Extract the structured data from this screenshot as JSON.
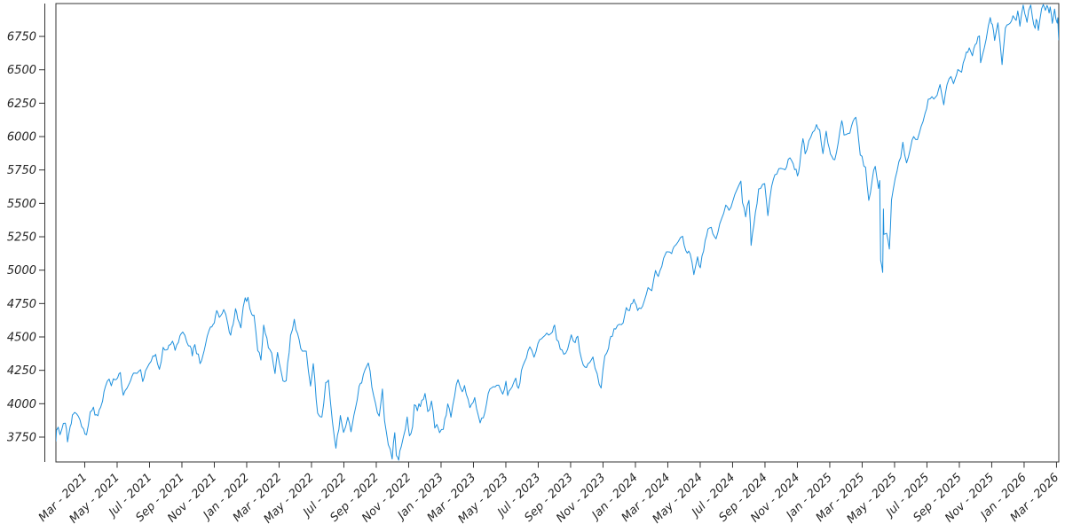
{
  "figure": {
    "background": "#ffffff",
    "spine_color": "#333333",
    "tick_label_color": "#262626"
  },
  "chart_data": {
    "type": "line",
    "title": "",
    "legend": null,
    "grid": false,
    "line_color": "#1e90dd",
    "x_axis": {
      "unit": "months_since_2021_01",
      "range_months": [
        0.22,
        62.14
      ],
      "tick_months": [
        2,
        4,
        6,
        8,
        10,
        12,
        14,
        16,
        18,
        20,
        22,
        24,
        26,
        28,
        30,
        32,
        34,
        36,
        38,
        40,
        42,
        44,
        46,
        48,
        50,
        52,
        54,
        56,
        58,
        60,
        62
      ],
      "tick_labels": [
        "Mar - 2021",
        "May - 2021",
        "Jul - 2021",
        "Sep - 2021",
        "Nov - 2021",
        "Jan - 2022",
        "Mar - 2022",
        "May - 2022",
        "Jul - 2022",
        "Sep - 2022",
        "Nov - 2022",
        "Jan - 2023",
        "Mar - 2023",
        "May - 2023",
        "Jul - 2023",
        "Sep - 2023",
        "Nov - 2023",
        "Jan - 2024",
        "Mar - 2024",
        "May - 2024",
        "Jul - 2024",
        "Sep - 2024",
        "Nov - 2024",
        "Jan - 2025",
        "Mar - 2025",
        "May - 2025",
        "Jul - 2025",
        "Sep - 2025",
        "Nov - 2025",
        "Jan - 2026",
        "Mar - 2026"
      ],
      "label_rotation_deg": 45
    },
    "y_axis": {
      "range": [
        3564,
        6996
      ],
      "tick_values": [
        3750,
        4000,
        4250,
        4500,
        4750,
        5000,
        5250,
        5500,
        5750,
        6000,
        6250,
        6500,
        6750
      ]
    },
    "points": [
      [
        0.22,
        3718
      ],
      [
        0.26,
        3801
      ],
      [
        0.36,
        3824
      ],
      [
        0.47,
        3768
      ],
      [
        0.68,
        3853
      ],
      [
        0.8,
        3855
      ],
      [
        0.94,
        3714
      ],
      [
        1.1,
        3830
      ],
      [
        1.24,
        3916
      ],
      [
        1.38,
        3935
      ],
      [
        1.6,
        3907
      ],
      [
        1.81,
        3829
      ],
      [
        1.93,
        3811
      ],
      [
        2.11,
        3768
      ],
      [
        2.34,
        3939
      ],
      [
        2.54,
        3974
      ],
      [
        2.63,
        3915
      ],
      [
        2.81,
        3910
      ],
      [
        2.98,
        3973
      ],
      [
        3.1,
        4020
      ],
      [
        3.28,
        4129
      ],
      [
        3.51,
        4185
      ],
      [
        3.64,
        4134
      ],
      [
        3.77,
        4187
      ],
      [
        3.94,
        4181
      ],
      [
        4.2,
        4233
      ],
      [
        4.38,
        4063
      ],
      [
        4.61,
        4116
      ],
      [
        4.77,
        4156
      ],
      [
        4.91,
        4204
      ],
      [
        5.11,
        4230
      ],
      [
        5.23,
        4227
      ],
      [
        5.45,
        4255
      ],
      [
        5.58,
        4166
      ],
      [
        5.75,
        4246
      ],
      [
        5.98,
        4298
      ],
      [
        6.21,
        4358
      ],
      [
        6.38,
        4369
      ],
      [
        6.61,
        4258
      ],
      [
        6.84,
        4422
      ],
      [
        7.05,
        4403
      ],
      [
        7.19,
        4437
      ],
      [
        7.42,
        4468
      ],
      [
        7.58,
        4400
      ],
      [
        7.88,
        4509
      ],
      [
        8.05,
        4537
      ],
      [
        8.31,
        4459
      ],
      [
        8.5,
        4433
      ],
      [
        8.64,
        4358
      ],
      [
        8.8,
        4443
      ],
      [
        9.12,
        4300
      ],
      [
        9.3,
        4363
      ],
      [
        9.45,
        4438
      ],
      [
        9.68,
        4550
      ],
      [
        9.85,
        4575
      ],
      [
        10.0,
        4605
      ],
      [
        10.15,
        4698
      ],
      [
        10.31,
        4647
      ],
      [
        10.58,
        4705
      ],
      [
        10.84,
        4595
      ],
      [
        11.01,
        4513
      ],
      [
        11.16,
        4591
      ],
      [
        11.31,
        4712
      ],
      [
        11.45,
        4634
      ],
      [
        11.64,
        4568
      ],
      [
        11.79,
        4726
      ],
      [
        11.91,
        4793
      ],
      [
        11.99,
        4766
      ],
      [
        12.08,
        4797
      ],
      [
        12.31,
        4670
      ],
      [
        12.45,
        4663
      ],
      [
        12.68,
        4398
      ],
      [
        12.88,
        4327
      ],
      [
        13.05,
        4589
      ],
      [
        13.34,
        4419
      ],
      [
        13.54,
        4380
      ],
      [
        13.75,
        4226
      ],
      [
        13.9,
        4384
      ],
      [
        14.01,
        4306
      ],
      [
        14.24,
        4171
      ],
      [
        14.44,
        4173
      ],
      [
        14.71,
        4512
      ],
      [
        14.94,
        4632
      ],
      [
        15.14,
        4525
      ],
      [
        15.44,
        4393
      ],
      [
        15.68,
        4394
      ],
      [
        15.94,
        4132
      ],
      [
        16.11,
        4300
      ],
      [
        16.38,
        3930
      ],
      [
        16.64,
        3901
      ],
      [
        16.88,
        4158
      ],
      [
        17.05,
        4177
      ],
      [
        17.41,
        3750
      ],
      [
        17.51,
        3667
      ],
      [
        17.78,
        3912
      ],
      [
        17.98,
        3785
      ],
      [
        18.24,
        3899
      ],
      [
        18.44,
        3790
      ],
      [
        18.71,
        3962
      ],
      [
        18.94,
        4130
      ],
      [
        19.1,
        4155
      ],
      [
        19.51,
        4305
      ],
      [
        19.84,
        4058
      ],
      [
        20.18,
        3908
      ],
      [
        20.38,
        4110
      ],
      [
        20.51,
        3873
      ],
      [
        20.74,
        3693
      ],
      [
        20.98,
        3586
      ],
      [
        21.14,
        3783
      ],
      [
        21.24,
        3612
      ],
      [
        21.38,
        3577
      ],
      [
        21.54,
        3678
      ],
      [
        21.68,
        3753
      ],
      [
        21.91,
        3901
      ],
      [
        22.05,
        3760
      ],
      [
        22.24,
        3828
      ],
      [
        22.35,
        3993
      ],
      [
        22.54,
        3947
      ],
      [
        22.81,
        4026
      ],
      [
        23.01,
        4077
      ],
      [
        23.18,
        3941
      ],
      [
        23.41,
        4020
      ],
      [
        23.61,
        3818
      ],
      [
        23.74,
        3845
      ],
      [
        23.91,
        3783
      ],
      [
        24.14,
        3808
      ],
      [
        24.41,
        3999
      ],
      [
        24.61,
        3899
      ],
      [
        24.84,
        4060
      ],
      [
        25.05,
        4180
      ],
      [
        25.31,
        4090
      ],
      [
        25.45,
        4136
      ],
      [
        25.78,
        3970
      ],
      [
        26.08,
        4046
      ],
      [
        26.41,
        3856
      ],
      [
        26.71,
        3937
      ],
      [
        27.01,
        4109
      ],
      [
        27.44,
        4138
      ],
      [
        27.81,
        4072
      ],
      [
        28.01,
        4168
      ],
      [
        28.11,
        4061
      ],
      [
        28.38,
        4124
      ],
      [
        28.61,
        4192
      ],
      [
        28.78,
        4115
      ],
      [
        29.05,
        4282
      ],
      [
        29.48,
        4426
      ],
      [
        29.74,
        4348
      ],
      [
        29.98,
        4450
      ],
      [
        30.41,
        4510
      ],
      [
        30.88,
        4537
      ],
      [
        31.01,
        4589
      ],
      [
        31.14,
        4478
      ],
      [
        31.58,
        4370
      ],
      [
        31.81,
        4406
      ],
      [
        32.04,
        4516
      ],
      [
        32.28,
        4457
      ],
      [
        32.44,
        4505
      ],
      [
        32.68,
        4330
      ],
      [
        32.88,
        4275
      ],
      [
        33.18,
        4309
      ],
      [
        33.38,
        4350
      ],
      [
        33.64,
        4224
      ],
      [
        33.88,
        4117
      ],
      [
        34.11,
        4358
      ],
      [
        34.34,
        4415
      ],
      [
        34.48,
        4503
      ],
      [
        34.78,
        4559
      ],
      [
        35.01,
        4595
      ],
      [
        35.24,
        4604
      ],
      [
        35.44,
        4720
      ],
      [
        35.64,
        4698
      ],
      [
        35.91,
        4783
      ],
      [
        36.04,
        4743
      ],
      [
        36.14,
        4697
      ],
      [
        36.54,
        4766
      ],
      [
        36.78,
        4869
      ],
      [
        37.01,
        4846
      ],
      [
        37.24,
        4998
      ],
      [
        37.41,
        4953
      ],
      [
        37.74,
        5089
      ],
      [
        38.01,
        5137
      ],
      [
        38.24,
        5124
      ],
      [
        38.38,
        5175
      ],
      [
        38.91,
        5254
      ],
      [
        39.11,
        5147
      ],
      [
        39.38,
        5123
      ],
      [
        39.61,
        4967
      ],
      [
        39.84,
        5100
      ],
      [
        40.01,
        5018
      ],
      [
        40.31,
        5223
      ],
      [
        40.48,
        5308
      ],
      [
        40.68,
        5321
      ],
      [
        40.98,
        5235
      ],
      [
        41.21,
        5347
      ],
      [
        41.58,
        5487
      ],
      [
        41.78,
        5448
      ],
      [
        42.14,
        5567
      ],
      [
        42.51,
        5667
      ],
      [
        42.61,
        5505
      ],
      [
        42.81,
        5399
      ],
      [
        43.01,
        5522
      ],
      [
        43.1,
        5346
      ],
      [
        43.14,
        5186
      ],
      [
        43.41,
        5434
      ],
      [
        43.61,
        5608
      ],
      [
        43.98,
        5648
      ],
      [
        44.18,
        5408
      ],
      [
        44.41,
        5626
      ],
      [
        44.61,
        5714
      ],
      [
        44.98,
        5762
      ],
      [
        45.24,
        5751
      ],
      [
        45.54,
        5841
      ],
      [
        45.74,
        5797
      ],
      [
        46.01,
        5705
      ],
      [
        46.14,
        5783
      ],
      [
        46.34,
        5984
      ],
      [
        46.48,
        5871
      ],
      [
        46.71,
        5969
      ],
      [
        46.94,
        6032
      ],
      [
        47.18,
        6090
      ],
      [
        47.38,
        6051
      ],
      [
        47.58,
        5872
      ],
      [
        47.78,
        6040
      ],
      [
        47.98,
        5907
      ],
      [
        48.04,
        5869
      ],
      [
        48.31,
        5827
      ],
      [
        48.74,
        6119
      ],
      [
        48.88,
        6012
      ],
      [
        49.24,
        6026
      ],
      [
        49.44,
        6115
      ],
      [
        49.61,
        6144
      ],
      [
        49.88,
        5862
      ],
      [
        50.21,
        5770
      ],
      [
        50.41,
        5522
      ],
      [
        50.61,
        5668
      ],
      [
        50.81,
        5777
      ],
      [
        51.01,
        5612
      ],
      [
        51.08,
        5671
      ],
      [
        51.14,
        5074
      ],
      [
        51.27,
        4983
      ],
      [
        51.31,
        5457
      ],
      [
        51.34,
        5268
      ],
      [
        51.51,
        5276
      ],
      [
        51.68,
        5158
      ],
      [
        51.81,
        5525
      ],
      [
        52.04,
        5687
      ],
      [
        52.38,
        5844
      ],
      [
        52.51,
        5958
      ],
      [
        52.74,
        5803
      ],
      [
        52.98,
        5912
      ],
      [
        53.18,
        6000
      ],
      [
        53.41,
        5977
      ],
      [
        53.88,
        6173
      ],
      [
        54.08,
        6279
      ],
      [
        54.54,
        6297
      ],
      [
        54.81,
        6389
      ],
      [
        55.04,
        6238
      ],
      [
        55.24,
        6389
      ],
      [
        55.48,
        6450
      ],
      [
        55.64,
        6396
      ],
      [
        55.91,
        6502
      ],
      [
        56.14,
        6482
      ],
      [
        56.34,
        6587
      ],
      [
        56.61,
        6664
      ],
      [
        56.81,
        6605
      ],
      [
        56.98,
        6688
      ],
      [
        57.24,
        6754
      ],
      [
        57.31,
        6553
      ],
      [
        57.54,
        6664
      ],
      [
        57.91,
        6891
      ],
      [
        58.04,
        6840
      ],
      [
        58.18,
        6720
      ],
      [
        58.38,
        6851
      ],
      [
        58.64,
        6539
      ],
      [
        58.68,
        6603
      ],
      [
        58.84,
        6813
      ],
      [
        59.14,
        6850
      ],
      [
        59.31,
        6905
      ],
      [
        59.51,
        6870
      ],
      [
        59.61,
        6940
      ],
      [
        59.74,
        6826
      ],
      [
        59.94,
        6985
      ],
      [
        60.04,
        6920
      ],
      [
        60.18,
        6855
      ],
      [
        60.28,
        6945
      ],
      [
        60.41,
        6985
      ],
      [
        60.51,
        6895
      ],
      [
        60.68,
        6810
      ],
      [
        60.74,
        6878
      ],
      [
        60.88,
        6795
      ],
      [
        60.98,
        6880
      ],
      [
        61.08,
        6958
      ],
      [
        61.18,
        6988
      ],
      [
        61.31,
        6945
      ],
      [
        61.41,
        6982
      ],
      [
        61.54,
        6925
      ],
      [
        61.61,
        6970
      ],
      [
        61.74,
        6848
      ],
      [
        61.81,
        6900
      ],
      [
        61.88,
        6955
      ],
      [
        62.04,
        6850
      ],
      [
        62.08,
        6890
      ],
      [
        62.11,
        6780
      ],
      [
        62.14,
        6722
      ]
    ]
  }
}
